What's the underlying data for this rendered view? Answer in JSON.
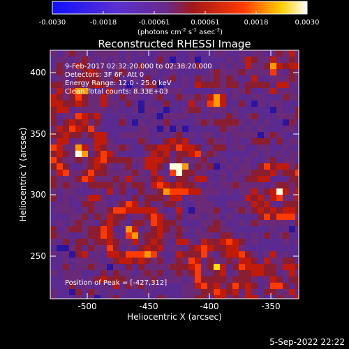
{
  "colorbar": {
    "ticks": [
      "-0.0030",
      "-0.0018",
      "-0.00061",
      "0.00061",
      "0.0018",
      "0.0030"
    ],
    "units_label": "(photons cm",
    "units_exp1": "-2",
    "units_mid": " s",
    "units_exp2": "-1",
    "units_mid2": " asec",
    "units_exp3": "-2",
    "units_end": ")"
  },
  "plot": {
    "title": "Reconstructed RHESSI Image",
    "annotations": [
      "9-Feb-2017 02:32:20.000 to 02:38:20.000",
      "Detectors: 3F 6F, Att 0",
      "Energy Range: 12.0 - 25.0 keV",
      "Clean     Total counts: 8.33E+03"
    ],
    "peak_label": "Position of Peak = [-427,312]",
    "xlabel": "Heliocentric X (arcsec)",
    "ylabel": "Heliocentric Y (arcsec)",
    "xticks": [
      "-500",
      "-450",
      "-400",
      "-350"
    ],
    "yticks": [
      "250",
      "300",
      "350",
      "400"
    ]
  },
  "timestamp": "5-Sep-2022 22:22",
  "colors": {
    "background": "#000000",
    "colormap_low": "#1a0aff",
    "colormap_mid": "#6a2aa0",
    "colormap_high": "#ff2a00",
    "colormap_top": "#ffffff"
  }
}
